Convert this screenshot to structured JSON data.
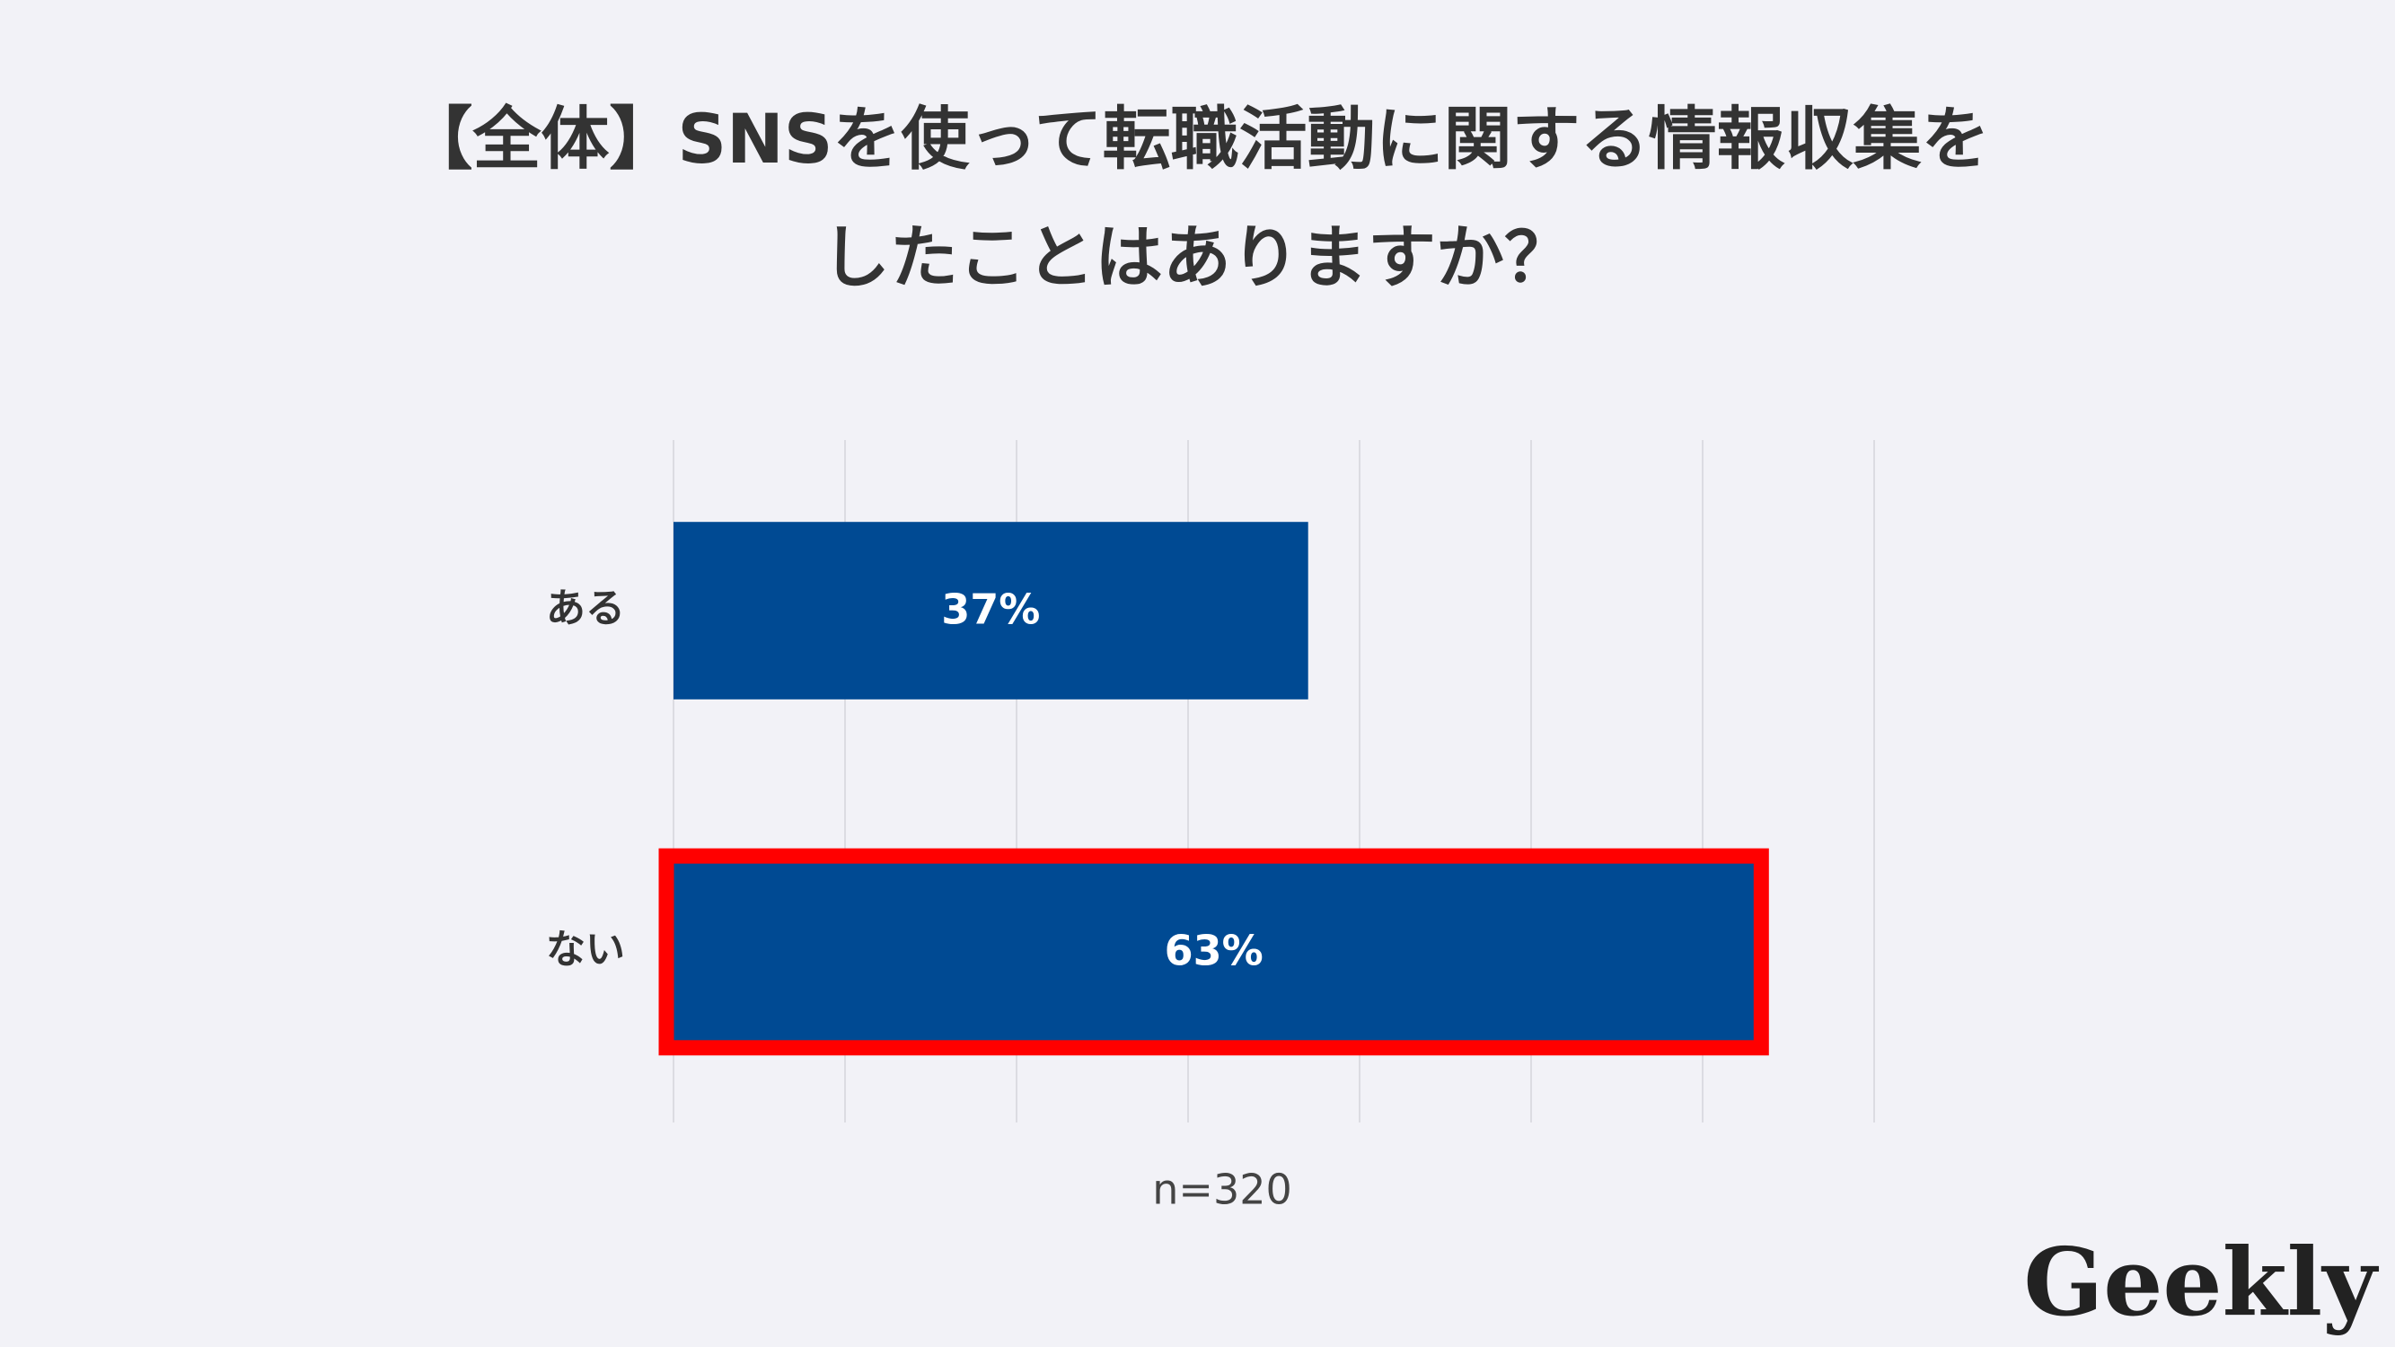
{
  "chart_data": {
    "type": "hbar",
    "title": [
      "【全体】SNSを使って転職活動に関する情報収集を",
      "したことはありますか？"
    ],
    "categories": [
      "ある",
      "ない"
    ],
    "values": [
      37,
      63
    ],
    "value_labels": [
      "37%",
      "63%"
    ],
    "color": "#004a93",
    "xlim": [
      0,
      70
    ],
    "xticks": [
      0,
      10,
      20,
      30,
      40,
      50,
      60,
      70
    ],
    "grid": true,
    "highlight_index": 1,
    "highlight_color": "#ff0000",
    "note": "n=320"
  },
  "logo": "Geekly"
}
